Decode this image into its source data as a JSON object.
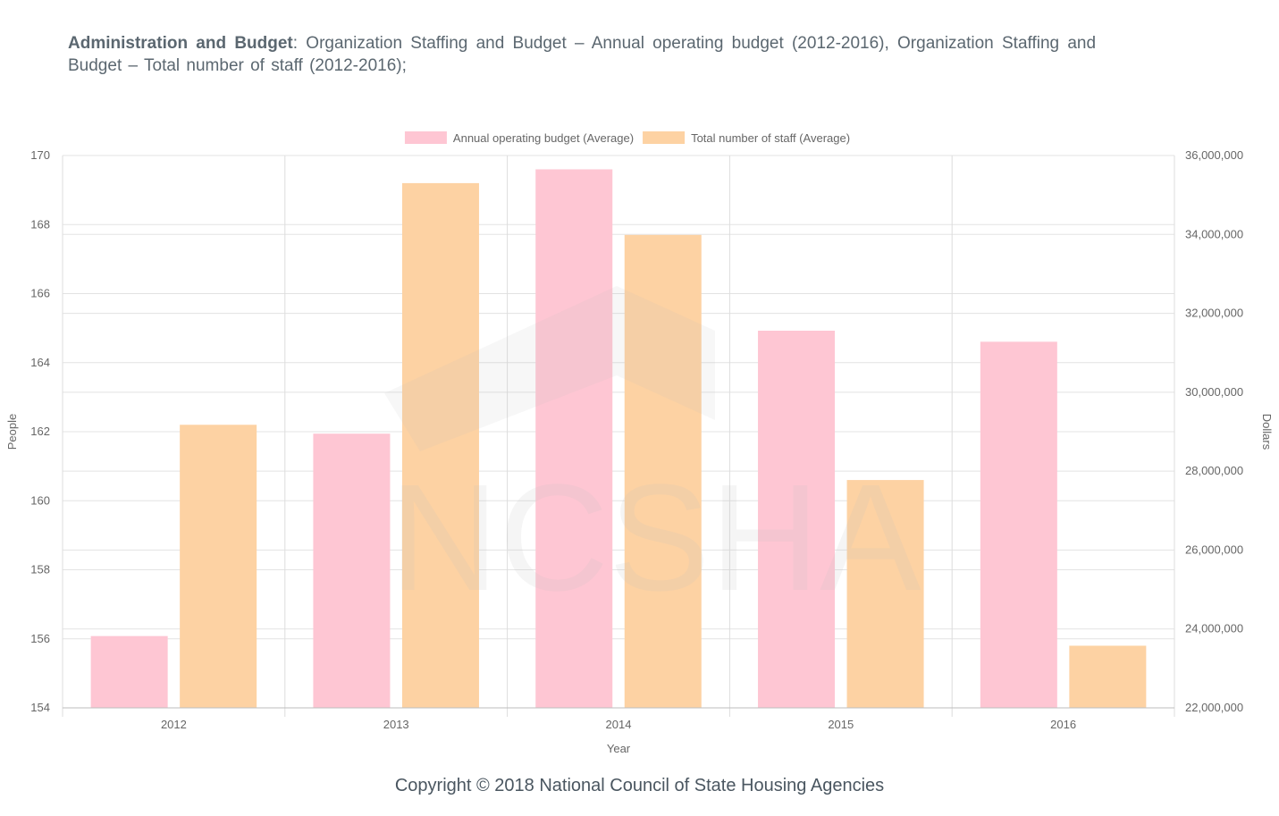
{
  "header": {
    "category": "Administration  and Budget",
    "separator": ": ",
    "description": "Organization  Staffing and Budget – Annual operating budget (2012-2016), Organization Staffing and Budget – Total number of staff (2012-2016);"
  },
  "footer": {
    "copyright": "Copyright © 2018 National Council of State Housing Agencies"
  },
  "watermark": {
    "text": "NCSHA"
  },
  "chart_data": {
    "type": "bar",
    "title": "",
    "xlabel": "Year",
    "ylabel_left": "People",
    "ylabel_right": "Dollars",
    "categories": [
      "2012",
      "2013",
      "2014",
      "2015",
      "2016"
    ],
    "series": [
      {
        "name": "Annual operating budget (Average)",
        "axis": "right",
        "color": "#fec6d3",
        "values": [
          23820000,
          28950000,
          35650000,
          31560000,
          31280000
        ]
      },
      {
        "name": "Total number of staff (Average)",
        "axis": "left",
        "color": "#fdd2a3",
        "values": [
          162.2,
          169.2,
          167.7,
          160.6,
          155.8
        ]
      }
    ],
    "ylim_left": [
      154,
      170
    ],
    "yticks_left": [
      "154",
      "156",
      "158",
      "160",
      "162",
      "164",
      "166",
      "168",
      "170"
    ],
    "ylim_right": [
      22000000,
      36000000
    ],
    "yticks_right": [
      "22,000,000",
      "24,000,000",
      "26,000,000",
      "28,000,000",
      "30,000,000",
      "32,000,000",
      "34,000,000",
      "36,000,000"
    ],
    "grid": true,
    "legend": "top-center"
  }
}
